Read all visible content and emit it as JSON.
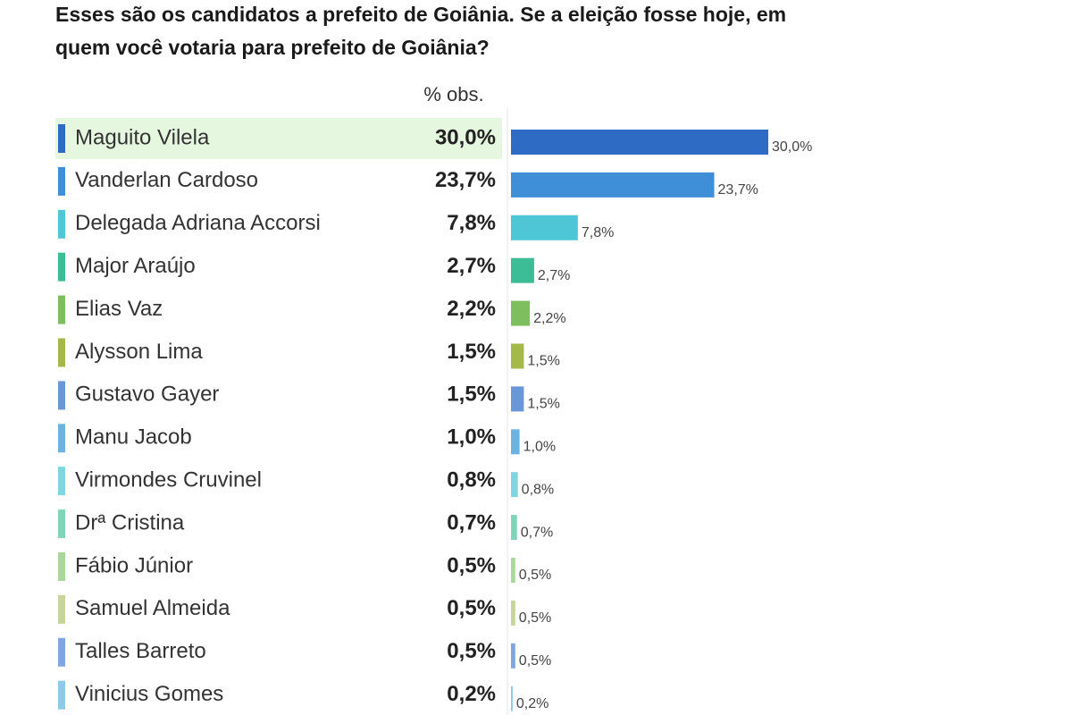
{
  "chart_data": {
    "type": "bar",
    "title_lines": [
      "Esses são os candidatos a prefeito de Goiânia. Se a eleição fosse hoje, em",
      "quem você votaria para prefeito de Goiânia?"
    ],
    "column_header": "% obs.",
    "categories": [
      "Maguito Vilela",
      "Vanderlan Cardoso",
      "Delegada Adriana Accorsi",
      "Major Araújo",
      "Elias Vaz",
      "Alysson Lima",
      "Gustavo Gayer",
      "Manu Jacob",
      "Virmondes Cruvinel",
      "Drª Cristina",
      "Fábio Júnior",
      "Samuel Almeida",
      "Talles Barreto",
      "Vinicius Gomes"
    ],
    "values": [
      30.0,
      23.7,
      7.8,
      2.7,
      2.2,
      1.5,
      1.5,
      1.0,
      0.8,
      0.7,
      0.5,
      0.5,
      0.5,
      0.2
    ],
    "value_labels": [
      "30,0%",
      "23,7%",
      "7,8%",
      "2,7%",
      "2,2%",
      "1,5%",
      "1,5%",
      "1,0%",
      "0,8%",
      "0,7%",
      "0,5%",
      "0,5%",
      "0,5%",
      "0,2%"
    ],
    "colors": [
      "#2e6bc4",
      "#3f8fd8",
      "#4fc6d6",
      "#3dbd96",
      "#7dbf5e",
      "#a5b84a",
      "#6a97d8",
      "#6cb3e0",
      "#7fd6e0",
      "#7ed6b8",
      "#a9d89a",
      "#c7d49a",
      "#7fa6e0",
      "#8fc8e8"
    ]
  }
}
